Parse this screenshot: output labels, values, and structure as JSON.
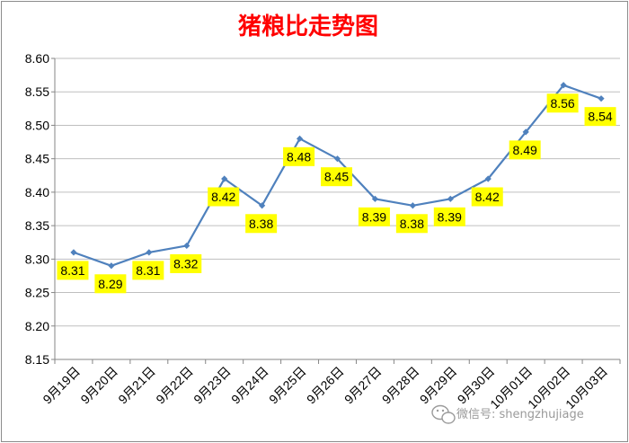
{
  "colors": {
    "title": "#ff0000",
    "line": "#4f81bd",
    "label_bg": "#ffff00",
    "grid": "#bfbfbf",
    "watermark": "#9a9a9a"
  },
  "watermark": {
    "icon": "wechat-icon",
    "text": "微信号: shengzhujiage"
  },
  "chart_data": {
    "type": "line",
    "title": "猪粮比走势图",
    "categories": [
      "9月19日",
      "9月20日",
      "9月21日",
      "9月22日",
      "9月23日",
      "9月24日",
      "9月25日",
      "9月26日",
      "9月27日",
      "9月28日",
      "9月29日",
      "9月30日",
      "10月01日",
      "10月02日",
      "10月03日"
    ],
    "series": [
      {
        "values": [
          8.31,
          8.29,
          8.31,
          8.32,
          8.42,
          8.38,
          8.48,
          8.45,
          8.39,
          8.38,
          8.39,
          8.42,
          8.49,
          8.56,
          8.54
        ]
      }
    ],
    "data_labels": [
      "8.31",
      "8.29",
      "8.31",
      "8.32",
      "8.42",
      "8.38",
      "8.48",
      "8.45",
      "8.39",
      "8.38",
      "8.39",
      "8.42",
      "8.49",
      "8.56",
      "8.54"
    ],
    "ylim": [
      8.15,
      8.6
    ],
    "yticks": [
      "8.15",
      "8.20",
      "8.25",
      "8.30",
      "8.35",
      "8.40",
      "8.45",
      "8.50",
      "8.55",
      "8.60"
    ],
    "grid": true,
    "legend": "none",
    "xlabel": "",
    "ylabel": ""
  }
}
